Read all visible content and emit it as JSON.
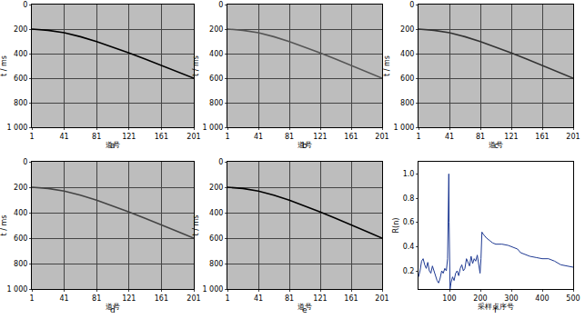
{
  "chart_data": [
    {
      "type": "line",
      "label": "a",
      "xlabel": "道号",
      "ylabel": "t / ms",
      "x": [
        1,
        21,
        41,
        61,
        81,
        101,
        121,
        141,
        161,
        181,
        201
      ],
      "values": [
        200,
        210,
        230,
        262,
        302,
        346,
        394,
        444,
        495,
        547,
        600
      ],
      "xlim": [
        1,
        201
      ],
      "xticks": [
        1,
        41,
        81,
        121,
        161,
        201
      ],
      "ylim": [
        1000,
        0
      ],
      "yticks": [
        0,
        200,
        400,
        600,
        800,
        {
          "value": 1000,
          "label": "1 000"
        }
      ],
      "grid": true,
      "color": "#000000"
    },
    {
      "type": "line",
      "label": "b",
      "xlabel": "道号",
      "ylabel": "t / ms",
      "x": [
        1,
        21,
        41,
        61,
        81,
        101,
        121,
        141,
        161,
        181,
        201
      ],
      "values": [
        200,
        210,
        230,
        262,
        302,
        346,
        394,
        444,
        495,
        547,
        600
      ],
      "xlim": [
        1,
        201
      ],
      "xticks": [
        1,
        41,
        81,
        121,
        161,
        201
      ],
      "ylim": [
        1000,
        0
      ],
      "yticks": [
        0,
        200,
        400,
        600,
        800,
        {
          "value": 1000,
          "label": "1 000"
        }
      ],
      "grid": true,
      "color": "#555555"
    },
    {
      "type": "line",
      "label": "c",
      "xlabel": "道号",
      "ylabel": "t / ms",
      "x": [
        1,
        21,
        41,
        61,
        81,
        101,
        121,
        141,
        161,
        181,
        201
      ],
      "values": [
        200,
        210,
        230,
        262,
        302,
        346,
        394,
        444,
        495,
        547,
        600
      ],
      "xlim": [
        1,
        201
      ],
      "xticks": [
        1,
        41,
        81,
        121,
        161,
        201
      ],
      "ylim": [
        1000,
        0
      ],
      "yticks": [
        0,
        200,
        400,
        600,
        800,
        {
          "value": 1000,
          "label": "1 000"
        }
      ],
      "grid": true,
      "color": "#333333"
    },
    {
      "type": "line",
      "label": "d",
      "xlabel": "道号",
      "ylabel": "t / ms",
      "x": [
        1,
        21,
        41,
        61,
        81,
        101,
        121,
        141,
        161,
        181,
        201
      ],
      "values": [
        200,
        210,
        230,
        262,
        302,
        346,
        394,
        444,
        495,
        547,
        600
      ],
      "xlim": [
        1,
        201
      ],
      "xticks": [
        1,
        41,
        81,
        121,
        161,
        201
      ],
      "ylim": [
        1000,
        0
      ],
      "yticks": [
        0,
        200,
        400,
        600,
        800,
        {
          "value": 1000,
          "label": "1 000"
        }
      ],
      "grid": true,
      "color": "#444444"
    },
    {
      "type": "line",
      "label": "e",
      "xlabel": "道号",
      "ylabel": "t / ms",
      "x": [
        1,
        21,
        41,
        61,
        81,
        101,
        121,
        141,
        161,
        181,
        201
      ],
      "values": [
        200,
        210,
        230,
        262,
        302,
        346,
        394,
        444,
        495,
        547,
        600
      ],
      "xlim": [
        1,
        201
      ],
      "xticks": [
        1,
        41,
        81,
        121,
        161,
        201
      ],
      "ylim": [
        1000,
        0
      ],
      "yticks": [
        0,
        200,
        400,
        600,
        800,
        {
          "value": 1000,
          "label": "1 000"
        }
      ],
      "grid": true,
      "color": "#000000"
    },
    {
      "type": "line",
      "label": "f",
      "xlabel": "采样点序号",
      "ylabel": "R(n)",
      "x": [
        0,
        5,
        10,
        15,
        20,
        25,
        30,
        35,
        40,
        45,
        50,
        55,
        60,
        65,
        70,
        75,
        80,
        85,
        90,
        94,
        97,
        98,
        99,
        100,
        102,
        105,
        110,
        115,
        120,
        125,
        130,
        135,
        140,
        145,
        150,
        155,
        160,
        165,
        170,
        175,
        180,
        185,
        190,
        195,
        199,
        202,
        205,
        210,
        220,
        230,
        240,
        250,
        270,
        290,
        300,
        310,
        320,
        330,
        340,
        350,
        360,
        380,
        400,
        420,
        440,
        460,
        480,
        500
      ],
      "values": [
        0.15,
        0.2,
        0.28,
        0.3,
        0.25,
        0.22,
        0.27,
        0.2,
        0.18,
        0.24,
        0.2,
        0.15,
        0.12,
        0.1,
        0.14,
        0.2,
        0.18,
        0.22,
        0.2,
        0.3,
        0.7,
        1.0,
        0.6,
        0.25,
        0.05,
        0.1,
        0.15,
        0.12,
        0.18,
        0.2,
        0.16,
        0.22,
        0.25,
        0.2,
        0.22,
        0.3,
        0.27,
        0.24,
        0.32,
        0.26,
        0.3,
        0.28,
        0.33,
        0.25,
        0.18,
        0.3,
        0.52,
        0.5,
        0.47,
        0.45,
        0.43,
        0.42,
        0.42,
        0.41,
        0.4,
        0.39,
        0.38,
        0.35,
        0.34,
        0.33,
        0.32,
        0.31,
        0.3,
        0.3,
        0.28,
        0.25,
        0.24,
        0.23
      ],
      "xlim": [
        0,
        500
      ],
      "xticks": [
        100,
        200,
        300,
        400,
        500
      ],
      "ylim": [
        0.05,
        1.1
      ],
      "yticks": [
        0.2,
        0.4,
        0.6,
        0.8,
        {
          "value": 1,
          "label": "1.0"
        }
      ],
      "grid": false,
      "color": "#1f3a93"
    }
  ]
}
